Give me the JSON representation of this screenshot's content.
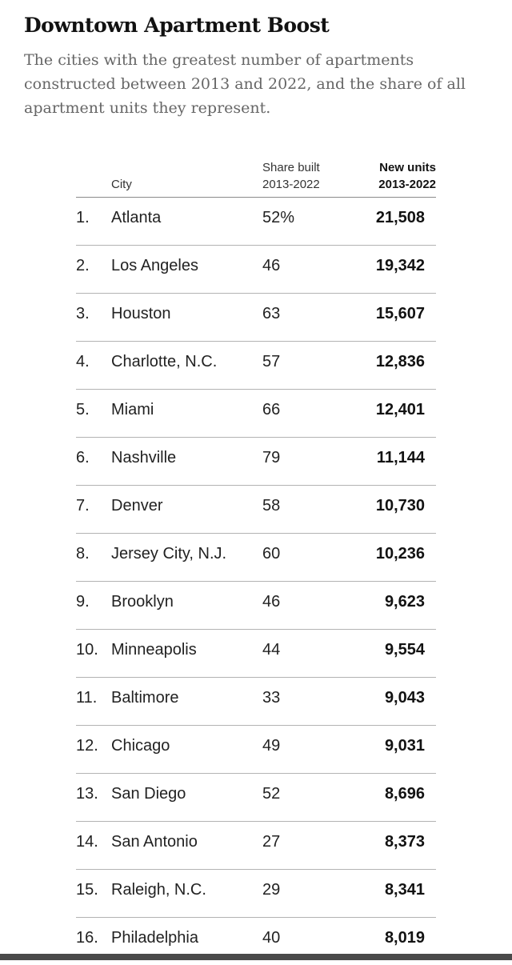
{
  "title": "Downtown Apartment Boost",
  "subtitle": "The cities with the greatest number of apartments constructed between 2013 and 2022, and the share of all apartment units they represent.",
  "chart_data": {
    "type": "table",
    "columns": {
      "city": "City",
      "share_line1": "Share built",
      "share_line2": "2013-2022",
      "units_line1": "New units",
      "units_line2": "2013-2022"
    },
    "rows": [
      {
        "rank": "1.",
        "city": "Atlanta",
        "share": "52%",
        "units": "21,508"
      },
      {
        "rank": "2.",
        "city": "Los Angeles",
        "share": "46",
        "units": "19,342"
      },
      {
        "rank": "3.",
        "city": "Houston",
        "share": "63",
        "units": "15,607"
      },
      {
        "rank": "4.",
        "city": "Charlotte, N.C.",
        "share": "57",
        "units": "12,836"
      },
      {
        "rank": "5.",
        "city": "Miami",
        "share": "66",
        "units": "12,401"
      },
      {
        "rank": "6.",
        "city": "Nashville",
        "share": "79",
        "units": "11,144"
      },
      {
        "rank": "7.",
        "city": "Denver",
        "share": "58",
        "units": "10,730"
      },
      {
        "rank": "8.",
        "city": "Jersey City, N.J.",
        "share": "60",
        "units": "10,236"
      },
      {
        "rank": "9.",
        "city": "Brooklyn",
        "share": "46",
        "units": "9,623"
      },
      {
        "rank": "10.",
        "city": "Minneapolis",
        "share": "44",
        "units": "9,554"
      },
      {
        "rank": "11.",
        "city": "Baltimore",
        "share": "33",
        "units": "9,043"
      },
      {
        "rank": "12.",
        "city": "Chicago",
        "share": "49",
        "units": "9,031"
      },
      {
        "rank": "13.",
        "city": "San Diego",
        "share": "52",
        "units": "8,696"
      },
      {
        "rank": "14.",
        "city": "San Antonio",
        "share": "27",
        "units": "8,373"
      },
      {
        "rank": "15.",
        "city": "Raleigh, N.C.",
        "share": "29",
        "units": "8,341"
      },
      {
        "rank": "16.",
        "city": "Philadelphia",
        "share": "40",
        "units": "8,019"
      }
    ]
  }
}
